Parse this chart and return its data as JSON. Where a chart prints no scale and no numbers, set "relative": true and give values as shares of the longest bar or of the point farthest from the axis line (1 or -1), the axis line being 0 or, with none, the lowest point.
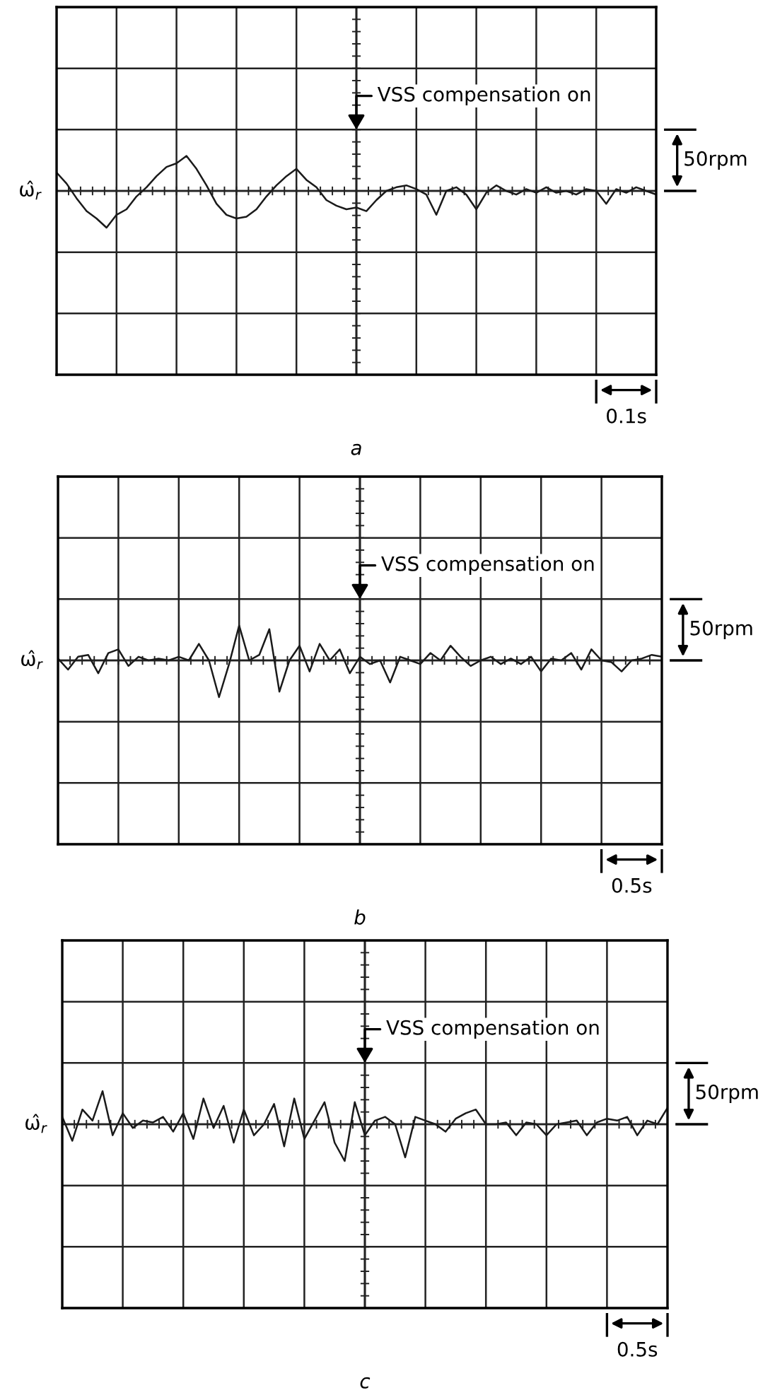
{
  "chart_data": [
    {
      "type": "line",
      "title": "a",
      "ylabel": "ω̂$_{r}$",
      "relative": true,
      "grid": true,
      "tick_labels": false,
      "annotations": [
        "VSS compensation on",
        "50rpm",
        "0.1s"
      ],
      "categories": [
        null,
        null,
        null,
        null,
        null,
        null,
        null,
        null,
        null,
        null,
        null,
        null,
        null,
        null,
        null,
        null,
        null,
        null,
        null,
        null,
        null,
        null,
        null,
        null,
        null,
        null,
        null,
        null,
        null,
        null,
        null,
        null,
        null,
        null,
        null,
        null,
        null,
        null,
        null,
        null,
        null,
        null,
        null,
        null,
        null,
        null,
        null,
        null,
        null,
        null,
        null,
        null,
        null,
        null,
        null,
        null,
        null,
        null,
        null,
        null,
        null
      ],
      "series": [
        {
          "color": "#1a1a1a",
          "values": [
            0.5,
            0.2,
            -0.2,
            -0.55,
            -0.75,
            -1.0,
            -0.65,
            -0.5,
            -0.15,
            0.1,
            0.4,
            0.65,
            0.75,
            0.95,
            0.6,
            0.15,
            -0.35,
            -0.65,
            -0.75,
            -0.7,
            -0.5,
            -0.15,
            0.15,
            0.4,
            0.6,
            0.3,
            0.1,
            -0.25,
            -0.4,
            -0.5,
            -0.45,
            -0.55,
            -0.25,
            0.0,
            0.1,
            0.15,
            0.05,
            -0.1,
            -0.65,
            0.0,
            0.1,
            -0.1,
            -0.5,
            -0.05,
            0.15,
            0.0,
            -0.1,
            0.05,
            -0.05,
            0.1,
            -0.05,
            0.0,
            -0.1,
            0.05,
            0.0,
            -0.35,
            0.05,
            -0.05,
            0.1,
            0.0,
            -0.1
          ]
        }
      ]
    },
    {
      "type": "line",
      "title": "b",
      "ylabel": "ω̂$_{r}$",
      "relative": true,
      "grid": true,
      "tick_labels": false,
      "annotations": [
        "VSS compensation on",
        "50rpm",
        "0.5s"
      ],
      "categories": [
        null,
        null,
        null,
        null,
        null,
        null,
        null,
        null,
        null,
        null,
        null,
        null,
        null,
        null,
        null,
        null,
        null,
        null,
        null,
        null,
        null,
        null,
        null,
        null,
        null,
        null,
        null,
        null,
        null,
        null,
        null,
        null,
        null,
        null,
        null,
        null,
        null,
        null,
        null,
        null,
        null,
        null,
        null,
        null,
        null,
        null,
        null,
        null,
        null,
        null,
        null,
        null,
        null,
        null,
        null,
        null,
        null,
        null,
        null,
        null,
        null
      ],
      "series": [
        {
          "color": "#1a1a1a",
          "values": [
            0.05,
            -0.25,
            0.1,
            0.15,
            -0.35,
            0.2,
            0.3,
            -0.15,
            0.1,
            0.0,
            0.05,
            0.0,
            0.1,
            0.0,
            0.45,
            0.0,
            -1.0,
            -0.1,
            0.95,
            0.0,
            0.15,
            0.85,
            -0.85,
            0.0,
            0.4,
            -0.3,
            0.45,
            0.0,
            0.3,
            -0.35,
            0.1,
            -0.1,
            0.0,
            -0.6,
            0.1,
            0.0,
            -0.1,
            0.2,
            0.0,
            0.4,
            0.1,
            -0.15,
            0.0,
            0.1,
            -0.1,
            0.05,
            -0.1,
            0.1,
            -0.3,
            0.05,
            0.0,
            0.2,
            -0.25,
            0.3,
            0.0,
            -0.05,
            -0.3,
            0.0,
            0.05,
            0.15,
            0.1
          ]
        }
      ]
    },
    {
      "type": "line",
      "title": "c",
      "ylabel": "ω̂$_{r}$",
      "relative": true,
      "grid": true,
      "tick_labels": false,
      "annotations": [
        "VSS compensation on",
        "50rpm",
        "0.5s"
      ],
      "categories": [
        null,
        null,
        null,
        null,
        null,
        null,
        null,
        null,
        null,
        null,
        null,
        null,
        null,
        null,
        null,
        null,
        null,
        null,
        null,
        null,
        null,
        null,
        null,
        null,
        null,
        null,
        null,
        null,
        null,
        null,
        null,
        null,
        null,
        null,
        null,
        null,
        null,
        null,
        null,
        null,
        null,
        null,
        null,
        null,
        null,
        null,
        null,
        null,
        null,
        null,
        null,
        null,
        null,
        null,
        null,
        null,
        null,
        null,
        null,
        null,
        null
      ],
      "series": [
        {
          "color": "#1a1a1a",
          "values": [
            0.2,
            -0.45,
            0.4,
            0.1,
            0.9,
            -0.3,
            0.3,
            -0.1,
            0.1,
            0.05,
            0.2,
            -0.2,
            0.3,
            -0.4,
            0.7,
            -0.1,
            0.5,
            -0.5,
            0.4,
            -0.3,
            0.0,
            0.55,
            -0.6,
            0.7,
            -0.4,
            0.1,
            0.6,
            -0.5,
            -1.0,
            0.6,
            -0.3,
            0.1,
            0.2,
            0.0,
            -0.9,
            0.2,
            0.1,
            0.0,
            -0.2,
            0.15,
            0.3,
            0.4,
            0.0,
            0.0,
            0.05,
            -0.3,
            0.05,
            0.0,
            -0.3,
            0.0,
            0.05,
            0.1,
            -0.3,
            0.05,
            0.15,
            0.1,
            0.2,
            -0.3,
            0.1,
            0.0,
            0.45
          ]
        }
      ]
    }
  ]
}
